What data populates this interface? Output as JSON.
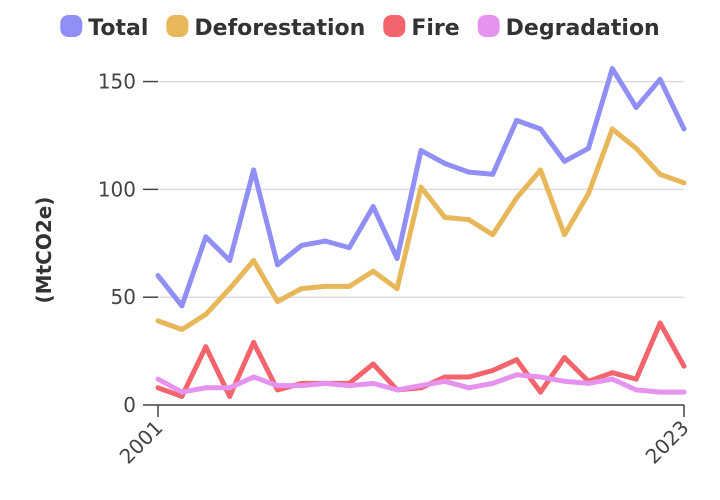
{
  "chart_data": {
    "type": "line",
    "ylabel": "(MtCO2e)",
    "xlim": [
      2001,
      2023
    ],
    "ylim": [
      0,
      160
    ],
    "yticks": [
      0,
      50,
      100,
      150
    ],
    "xticks": [
      2001,
      2023
    ],
    "xtick_labels": [
      "2001",
      "2023"
    ],
    "legend": "top",
    "grid": "horizontal",
    "x": [
      2001,
      2002,
      2003,
      2004,
      2005,
      2006,
      2007,
      2008,
      2009,
      2010,
      2011,
      2012,
      2013,
      2014,
      2015,
      2016,
      2017,
      2018,
      2019,
      2020,
      2021,
      2022,
      2023
    ],
    "series": [
      {
        "name": "Total",
        "color": "#8f8ff5",
        "values": [
          60,
          46,
          78,
          67,
          109,
          65,
          74,
          76,
          73,
          92,
          68,
          118,
          112,
          108,
          107,
          132,
          128,
          113,
          119,
          156,
          138,
          151,
          128
        ]
      },
      {
        "name": "Deforestation",
        "color": "#e8b75a",
        "values": [
          39,
          35,
          42,
          54,
          67,
          48,
          54,
          55,
          55,
          62,
          54,
          101,
          87,
          86,
          79,
          96,
          109,
          79,
          98,
          128,
          119,
          107,
          103
        ]
      },
      {
        "name": "Fire",
        "color": "#f4646c",
        "values": [
          8,
          4,
          27,
          4,
          29,
          7,
          10,
          10,
          10,
          19,
          7,
          8,
          13,
          13,
          16,
          21,
          6,
          22,
          11,
          15,
          12,
          38,
          18
        ]
      },
      {
        "name": "Degradation",
        "color": "#e593ef",
        "values": [
          12,
          6,
          8,
          8,
          13,
          9,
          9,
          10,
          9,
          10,
          7,
          9,
          11,
          8,
          10,
          14,
          13,
          11,
          10,
          12,
          7,
          6,
          6
        ]
      }
    ]
  }
}
